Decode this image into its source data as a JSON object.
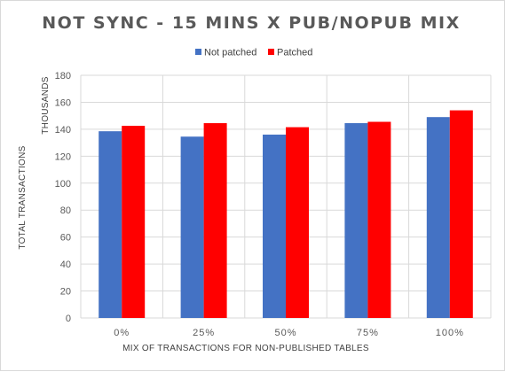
{
  "chart_data": {
    "type": "bar",
    "title": "NOT SYNC - 15 MINS X PUB/NOPUB MIX",
    "xlabel": "MIX OF TRANSACTIONS FOR NON-PUBLISHED TABLES",
    "ylabel": "TOTAL TRANSACTIONS",
    "ylabel_units": "THOUSANDS",
    "categories": [
      "0%",
      "25%",
      "50%",
      "75%",
      "100%"
    ],
    "series": [
      {
        "name": "Not patched",
        "color": "#4472C4",
        "values": [
          138.5,
          134.5,
          136,
          144.5,
          149
        ]
      },
      {
        "name": "Patched",
        "color": "#FF0000",
        "values": [
          142.5,
          144.5,
          141.5,
          145.5,
          154
        ]
      }
    ],
    "ylim": [
      0,
      180
    ],
    "yticks": [
      0,
      20,
      40,
      60,
      80,
      100,
      120,
      140,
      160,
      180
    ],
    "grid": true,
    "legend_position": "top"
  }
}
